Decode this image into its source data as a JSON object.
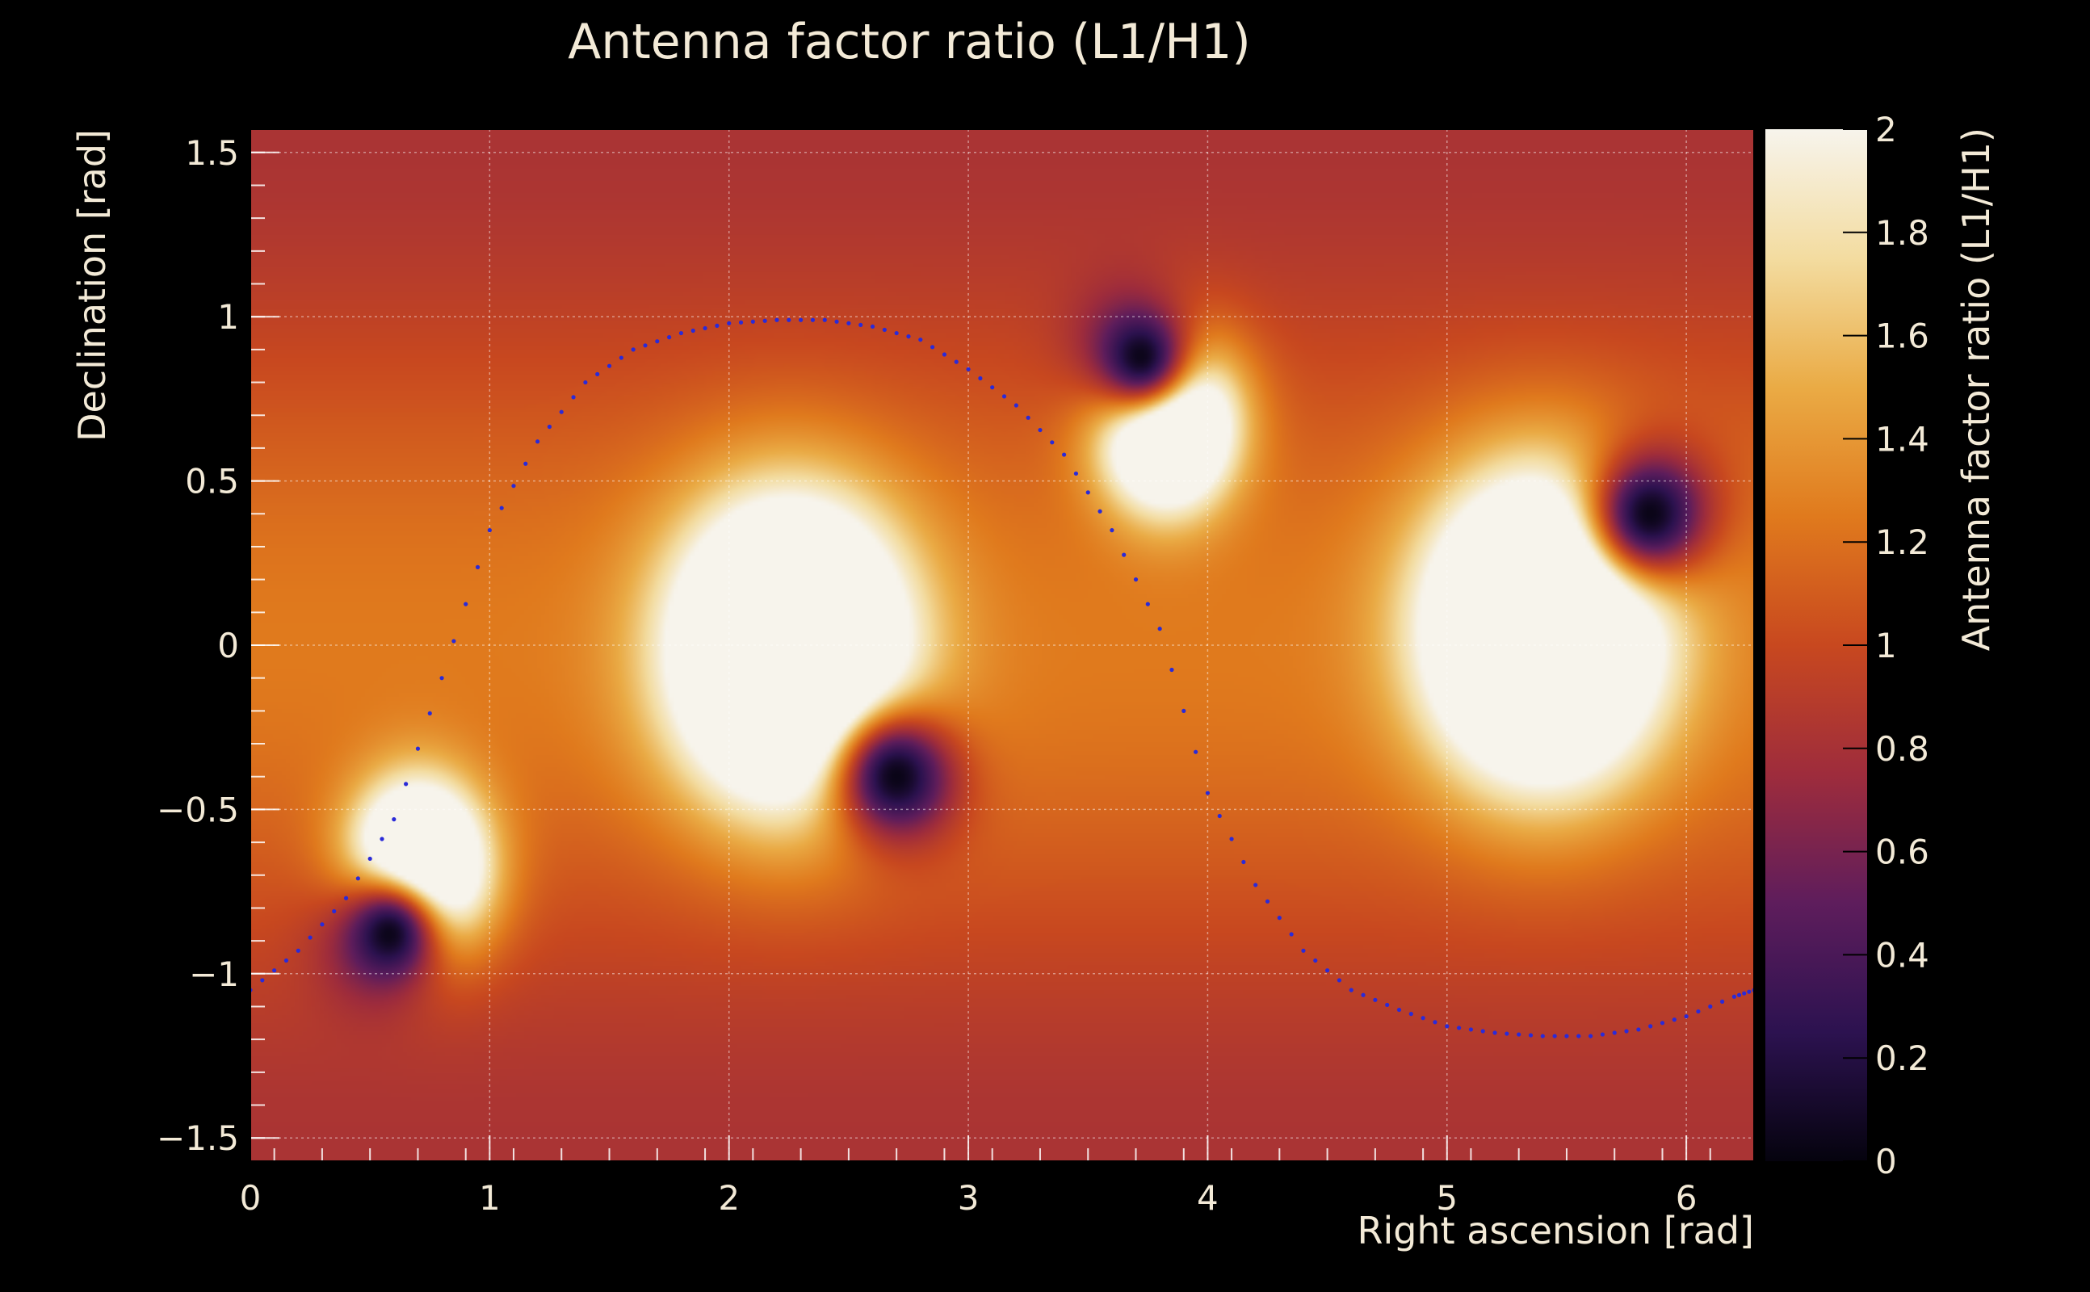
{
  "chart_data": {
    "type": "heatmap",
    "title": "Antenna factor ratio (L1/H1)",
    "xlabel": "Right ascension [rad]",
    "ylabel": "Declination [rad]",
    "zlabel": "Antenna factor ratio (L1/H1)",
    "xlim": [
      0,
      6.283
    ],
    "ylim": [
      -1.5708,
      1.5708
    ],
    "zlim": [
      0,
      2
    ],
    "x_ticks": [
      0,
      1,
      2,
      3,
      4,
      5,
      6
    ],
    "x_tick_labels": [
      "0",
      "1",
      "2",
      "3",
      "4",
      "5",
      "6"
    ],
    "y_ticks": [
      -1.5,
      -1,
      -0.5,
      0,
      0.5,
      1,
      1.5
    ],
    "y_tick_labels": [
      "−1.5",
      "−1",
      "−0.5",
      "0",
      "0.5",
      "1",
      "1.5"
    ],
    "z_ticks": [
      0,
      0.2,
      0.4,
      0.6,
      0.8,
      1,
      1.2,
      1.4,
      1.6,
      1.8,
      2
    ],
    "z_tick_labels": [
      "0",
      "0.2",
      "0.4",
      "0.6",
      "0.8",
      "1",
      "1.2",
      "1.4",
      "1.6",
      "1.8",
      "2"
    ],
    "grid": true,
    "colormap": "inferno-like (black → purple → red → orange → cream)",
    "colormap_stops": [
      "#05030e",
      "#2c1250",
      "#5e1d5c",
      "#9e2c3c",
      "#c8481f",
      "#e07a1d",
      "#eaab45",
      "#f3dca0",
      "#f7f4ec"
    ],
    "background_level": 1.0,
    "maxima_regions": [
      {
        "ra": 0.7,
        "dec": -0.7,
        "value": 2
      },
      {
        "ra": 2.25,
        "dec": -0.02,
        "value": 2
      },
      {
        "ra": 3.83,
        "dec": 0.7,
        "value": 2
      },
      {
        "ra": 5.4,
        "dec": 0.05,
        "value": 2
      }
    ],
    "minima_regions": [
      {
        "ra": 0.58,
        "dec": -0.88,
        "value": 0
      },
      {
        "ra": 2.7,
        "dec": -0.4,
        "value": 0
      },
      {
        "ra": 3.72,
        "dec": 0.88,
        "value": 0
      },
      {
        "ra": 5.85,
        "dec": 0.4,
        "value": 0
      }
    ],
    "dotted_curve": {
      "color": "#2a2ad8",
      "style": "dotted",
      "points": [
        {
          "x": 0.0,
          "y": -1.05
        },
        {
          "x": 0.2,
          "y": -0.93
        },
        {
          "x": 0.4,
          "y": -0.77
        },
        {
          "x": 0.6,
          "y": -0.53
        },
        {
          "x": 0.8,
          "y": -0.1
        },
        {
          "x": 1.0,
          "y": 0.35
        },
        {
          "x": 1.2,
          "y": 0.62
        },
        {
          "x": 1.4,
          "y": 0.8
        },
        {
          "x": 1.6,
          "y": 0.9
        },
        {
          "x": 1.8,
          "y": 0.95
        },
        {
          "x": 2.0,
          "y": 0.98
        },
        {
          "x": 2.2,
          "y": 0.99
        },
        {
          "x": 2.4,
          "y": 0.99
        },
        {
          "x": 2.6,
          "y": 0.97
        },
        {
          "x": 2.8,
          "y": 0.93
        },
        {
          "x": 3.0,
          "y": 0.84
        },
        {
          "x": 3.2,
          "y": 0.73
        },
        {
          "x": 3.4,
          "y": 0.58
        },
        {
          "x": 3.6,
          "y": 0.35
        },
        {
          "x": 3.8,
          "y": 0.05
        },
        {
          "x": 4.0,
          "y": -0.45
        },
        {
          "x": 4.2,
          "y": -0.73
        },
        {
          "x": 4.4,
          "y": -0.93
        },
        {
          "x": 4.6,
          "y": -1.05
        },
        {
          "x": 4.8,
          "y": -1.11
        },
        {
          "x": 5.0,
          "y": -1.16
        },
        {
          "x": 5.2,
          "y": -1.18
        },
        {
          "x": 5.4,
          "y": -1.19
        },
        {
          "x": 5.6,
          "y": -1.19
        },
        {
          "x": 5.8,
          "y": -1.17
        },
        {
          "x": 6.0,
          "y": -1.13
        },
        {
          "x": 6.2,
          "y": -1.07
        },
        {
          "x": 6.283,
          "y": -1.05
        }
      ]
    }
  }
}
